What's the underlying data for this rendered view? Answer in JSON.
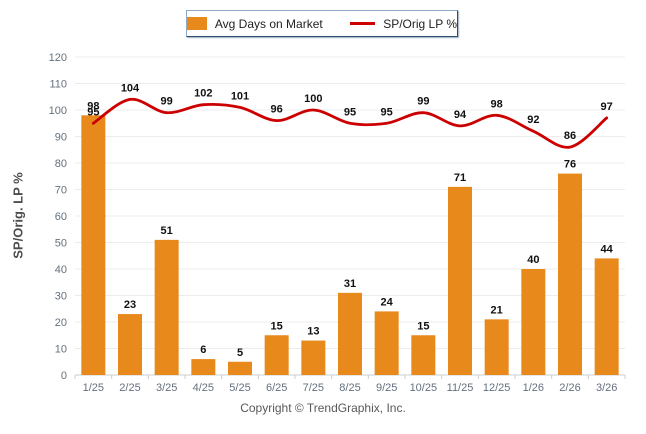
{
  "legend": {
    "bar_label": "Avg Days on Market",
    "line_label": "SP/Orig LP %"
  },
  "y_axis_title": "SP/Orig. LP %",
  "footer": "Copyright © TrendGraphix, Inc.",
  "colors": {
    "bar": "#E8891B",
    "line": "#CC0000",
    "grid": "#ECECEC",
    "axis": "#C9CDD2",
    "tick_label": "#64707E",
    "value_label": "#111111"
  },
  "chart_data": {
    "type": "bar",
    "subtype": "bar+line combo",
    "categories": [
      "1/25",
      "2/25",
      "3/25",
      "4/25",
      "5/25",
      "6/25",
      "7/25",
      "8/25",
      "9/25",
      "10/25",
      "11/25",
      "12/25",
      "1/26",
      "2/26",
      "3/26"
    ],
    "series": [
      {
        "name": "Avg Days on Market",
        "type": "bar",
        "values": [
          98,
          23,
          51,
          6,
          5,
          15,
          13,
          31,
          24,
          15,
          71,
          21,
          40,
          76,
          44
        ]
      },
      {
        "name": "SP/Orig LP %",
        "type": "line",
        "values": [
          95,
          104,
          99,
          102,
          101,
          96,
          100,
          95,
          95,
          99,
          94,
          98,
          92,
          86,
          97
        ]
      }
    ],
    "title": "",
    "xlabel": "",
    "ylabel": "SP/Orig. LP %",
    "ylim": [
      0,
      120
    ],
    "ytick_step": 10,
    "grid": true,
    "legend_position": "top-center",
    "data_labels": true
  }
}
